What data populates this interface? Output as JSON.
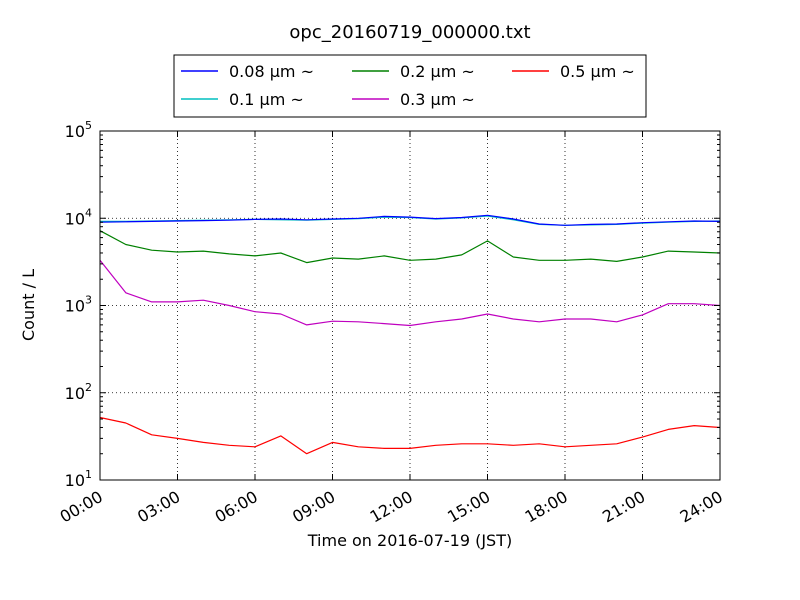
{
  "chart_data": {
    "type": "line",
    "title": "opc_20160719_000000.txt",
    "xlabel": "Time on 2016-07-19 (JST)",
    "ylabel": "Count / L",
    "yscale": "log",
    "xlim": [
      "00:00",
      "24:00"
    ],
    "ylim": [
      10,
      100000
    ],
    "grid": true,
    "legend_position": "top-center (above plot)",
    "x_ticks": [
      "00:00",
      "03:00",
      "06:00",
      "09:00",
      "12:00",
      "15:00",
      "18:00",
      "21:00",
      "24:00"
    ],
    "y_ticks": [
      {
        "base": "10",
        "exp": "1"
      },
      {
        "base": "10",
        "exp": "2"
      },
      {
        "base": "10",
        "exp": "3"
      },
      {
        "base": "10",
        "exp": "4"
      },
      {
        "base": "10",
        "exp": "5"
      }
    ],
    "x": [
      "00:00",
      "01:00",
      "02:00",
      "03:00",
      "04:00",
      "05:00",
      "06:00",
      "07:00",
      "08:00",
      "09:00",
      "10:00",
      "11:00",
      "12:00",
      "13:00",
      "14:00",
      "15:00",
      "16:00",
      "17:00",
      "18:00",
      "19:00",
      "20:00",
      "21:00",
      "22:00",
      "23:00",
      "24:00"
    ],
    "series": [
      {
        "name": "0.08 μm ~",
        "color": "#0000ff",
        "values": [
          9000,
          9100,
          9200,
          9300,
          9400,
          9500,
          9700,
          9800,
          9600,
          9800,
          10000,
          10500,
          10300,
          9900,
          10200,
          10800,
          9800,
          8600,
          8300,
          8500,
          8600,
          8900,
          9100,
          9300,
          9200
        ]
      },
      {
        "name": "0.1 μm ~",
        "color": "#00bfbf",
        "values": [
          9200,
          9200,
          9300,
          9400,
          9500,
          9600,
          9700,
          9600,
          9500,
          9700,
          9900,
          10300,
          10200,
          9800,
          10100,
          10600,
          9600,
          8500,
          8300,
          8400,
          8500,
          8800,
          9000,
          9200,
          9300
        ]
      },
      {
        "name": "0.2 μm ~",
        "color": "#008000",
        "values": [
          7200,
          5000,
          4300,
          4100,
          4200,
          3900,
          3700,
          4000,
          3100,
          3500,
          3400,
          3700,
          3300,
          3400,
          3800,
          5500,
          3600,
          3300,
          3300,
          3400,
          3200,
          3600,
          4200,
          4100,
          4000
        ]
      },
      {
        "name": "0.3 μm ~",
        "color": "#bf00bf",
        "values": [
          3300,
          1400,
          1100,
          1100,
          1150,
          1000,
          850,
          800,
          600,
          660,
          650,
          620,
          590,
          650,
          700,
          800,
          700,
          650,
          700,
          700,
          650,
          780,
          1050,
          1050,
          1000
        ]
      },
      {
        "name": "0.5 μm ~",
        "color": "#ff0000",
        "values": [
          52,
          45,
          33,
          30,
          27,
          25,
          24,
          32,
          20,
          27,
          24,
          23,
          23,
          25,
          26,
          26,
          25,
          26,
          24,
          25,
          26,
          31,
          38,
          42,
          40
        ]
      }
    ]
  }
}
